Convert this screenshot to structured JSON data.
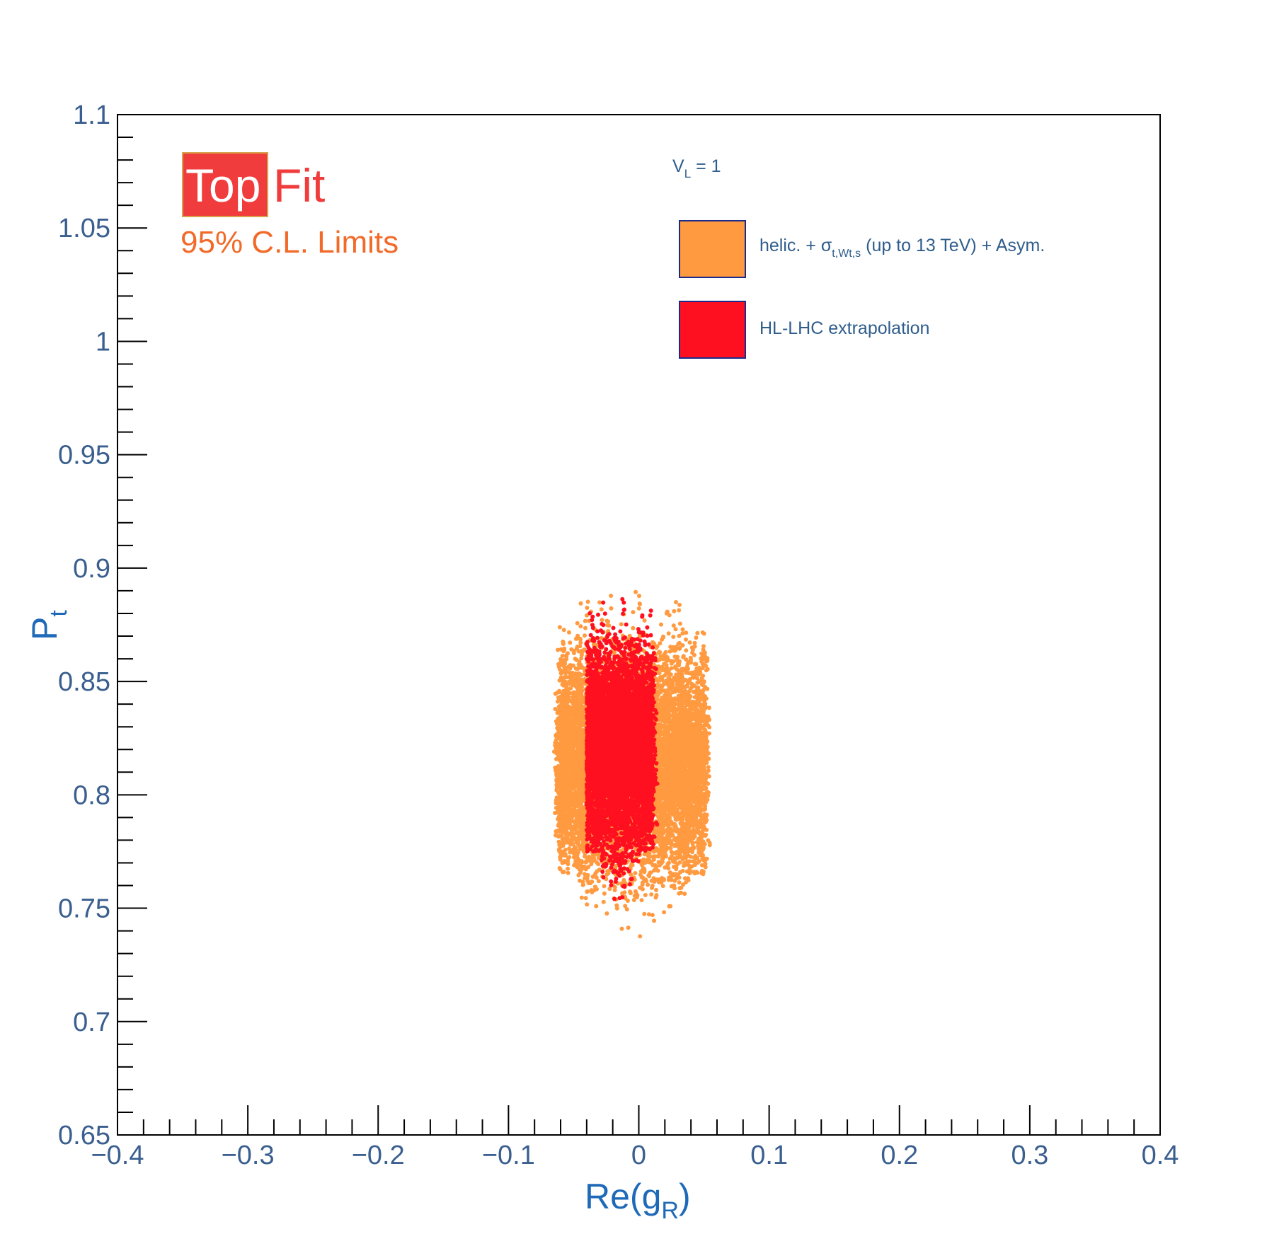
{
  "chart_data": {
    "type": "scatter",
    "logo": {
      "part1": "Top",
      "part2": "Fit"
    },
    "subtitle": "95% C.L. Limits",
    "xlabel": {
      "main": "Re(g",
      "sub": "R",
      "close": ")"
    },
    "ylabel": {
      "main": "P",
      "sub": "t"
    },
    "xlim": [
      -0.4,
      0.4
    ],
    "ylim": [
      0.65,
      1.1
    ],
    "x_ticks": [
      "−0.4",
      "−0.3",
      "−0.2",
      "−0.1",
      "0",
      "0.1",
      "0.2",
      "0.3",
      "0.4"
    ],
    "y_ticks": [
      "0.65",
      "0.7",
      "0.75",
      "0.8",
      "0.85",
      "0.9",
      "0.95",
      "1",
      "1.05",
      "1.1"
    ],
    "legend": {
      "header": {
        "main": "V",
        "sub": "L",
        "rest": " = 1"
      },
      "entries": [
        {
          "pre": "helic. + σ",
          "sub": "t,Wt,s",
          "post": " (up to 13 TeV) + Asym.",
          "color": "#ff9a40"
        },
        {
          "pre": "HL-LHC extrapolation",
          "sub": "",
          "post": "",
          "color": "#ff1020"
        }
      ]
    },
    "series": [
      {
        "name": "helic. + σt,Wt,s (up to 13 TeV) + Asym.",
        "color": "#ff9a40",
        "region": {
          "x_min": -0.065,
          "x_max": 0.055,
          "y_min": 0.735,
          "y_max": 0.89,
          "x_center": -0.005,
          "y_center": 0.815
        }
      },
      {
        "name": "HL-LHC extrapolation",
        "color": "#ff1020",
        "region": {
          "x_min": -0.04,
          "x_max": 0.015,
          "y_min": 0.752,
          "y_max": 0.89,
          "x_center": -0.015,
          "y_center": 0.82
        }
      }
    ],
    "colors": {
      "axis_text": "#3a5f8f",
      "axis_title": "#1f6ab8",
      "logo_red": "#f03c3c",
      "subtitle": "#f26a2a"
    }
  }
}
